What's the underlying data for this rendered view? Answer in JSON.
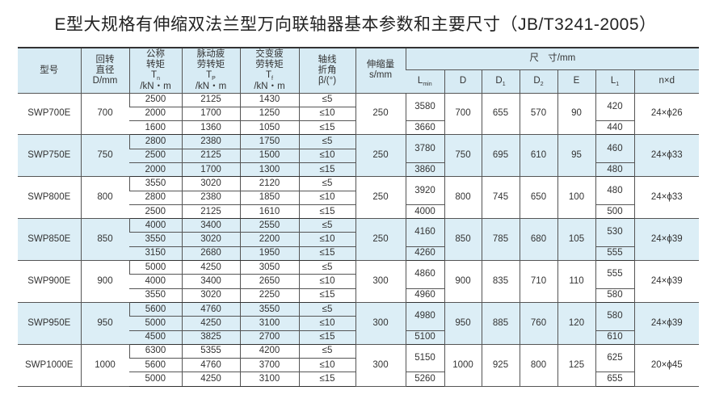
{
  "title": "E型大规格有伸缩双法兰型万向联轴器基本参数和主要尺寸（JB/T3241-2005）",
  "header": {
    "model": "型号",
    "rot_dia": [
      "回转",
      "直径",
      "D/mm"
    ],
    "tn": [
      "公称",
      "转矩",
      "T",
      "n",
      "/kN・m"
    ],
    "tp": [
      "脉动疲",
      "劳转矩",
      "T",
      "P",
      "/kN・m"
    ],
    "tf": [
      "交变疲",
      "劳转矩",
      "T",
      "f",
      "/kN・m"
    ],
    "beta": [
      "轴线",
      "折角",
      "β/(°)"
    ],
    "stroke": [
      "伸缩量",
      "s/mm"
    ],
    "dims": "尺　寸/mm",
    "lmin": [
      "L",
      "min"
    ],
    "d": "D",
    "d1": [
      "D",
      "1"
    ],
    "d2": [
      "D",
      "2"
    ],
    "e": "E",
    "l1": [
      "L",
      "1"
    ],
    "nd": "n×d"
  },
  "rows": [
    {
      "model": "SWP700E",
      "D": "700",
      "tn": [
        "2500",
        "2000",
        "1600"
      ],
      "tp": [
        "2125",
        "1700",
        "1360"
      ],
      "tf": [
        "1430",
        "1250",
        "1050"
      ],
      "beta": [
        "≤5",
        "≤10",
        "≤15"
      ],
      "s": "250",
      "lmin": [
        "3580",
        "3660"
      ],
      "Dd": "700",
      "D1": "655",
      "D2": "570",
      "E": "90",
      "L1": [
        "420",
        "440"
      ],
      "nd": "24×ϕ26"
    },
    {
      "model": "SWP750E",
      "D": "750",
      "tn": [
        "2800",
        "2500",
        "2000"
      ],
      "tp": [
        "2380",
        "2125",
        "1700"
      ],
      "tf": [
        "1750",
        "1500",
        "1300"
      ],
      "beta": [
        "≤5",
        "≤10",
        "≤15"
      ],
      "s": "250",
      "lmin": [
        "3780",
        "3860"
      ],
      "Dd": "750",
      "D1": "695",
      "D2": "610",
      "E": "95",
      "L1": [
        "460",
        "480"
      ],
      "nd": "24×ϕ33"
    },
    {
      "model": "SWP800E",
      "D": "800",
      "tn": [
        "3550",
        "2800",
        "2500"
      ],
      "tp": [
        "3020",
        "2380",
        "2125"
      ],
      "tf": [
        "2120",
        "1850",
        "1610"
      ],
      "beta": [
        "≤5",
        "≤10",
        "≤15"
      ],
      "s": "250",
      "lmin": [
        "3920",
        "4000"
      ],
      "Dd": "800",
      "D1": "745",
      "D2": "650",
      "E": "100",
      "L1": [
        "480",
        "500"
      ],
      "nd": "24×ϕ33"
    },
    {
      "model": "SWP850E",
      "D": "850",
      "tn": [
        "4000",
        "3550",
        "3150"
      ],
      "tp": [
        "3400",
        "3020",
        "2680"
      ],
      "tf": [
        "2550",
        "2200",
        "1950"
      ],
      "beta": [
        "≤5",
        "≤10",
        "≤15"
      ],
      "s": "250",
      "lmin": [
        "4160",
        "4260"
      ],
      "Dd": "850",
      "D1": "785",
      "D2": "680",
      "E": "105",
      "L1": [
        "530",
        "555"
      ],
      "nd": "24×ϕ39"
    },
    {
      "model": "SWP900E",
      "D": "900",
      "tn": [
        "5000",
        "4000",
        "3550"
      ],
      "tp": [
        "4250",
        "3400",
        "3020"
      ],
      "tf": [
        "3050",
        "2650",
        "2250"
      ],
      "beta": [
        "≤5",
        "≤10",
        "≤15"
      ],
      "s": "300",
      "lmin": [
        "4860",
        "4960"
      ],
      "Dd": "900",
      "D1": "835",
      "D2": "710",
      "E": "110",
      "L1": [
        "555",
        "580"
      ],
      "nd": "24×ϕ39"
    },
    {
      "model": "SWP950E",
      "D": "950",
      "tn": [
        "5600",
        "5000",
        "4500"
      ],
      "tp": [
        "4760",
        "4250",
        "3825"
      ],
      "tf": [
        "3550",
        "3100",
        "2700"
      ],
      "beta": [
        "≤5",
        "≤10",
        "≤15"
      ],
      "s": "300",
      "lmin": [
        "4980",
        "5100"
      ],
      "Dd": "950",
      "D1": "885",
      "D2": "760",
      "E": "120",
      "L1": [
        "580",
        "610"
      ],
      "nd": "24×ϕ39"
    },
    {
      "model": "SWP1000E",
      "D": "1000",
      "tn": [
        "6300",
        "5600",
        "5000"
      ],
      "tp": [
        "5355",
        "4760",
        "4250"
      ],
      "tf": [
        "4200",
        "3700",
        "3100"
      ],
      "beta": [
        "≤5",
        "≤10",
        "≤15"
      ],
      "s": "300",
      "lmin": [
        "5150",
        "5260"
      ],
      "Dd": "1000",
      "D1": "925",
      "D2": "800",
      "E": "125",
      "L1": [
        "625",
        "655"
      ],
      "nd": "20×ϕ45"
    }
  ],
  "colors": {
    "header_bg": "#d7ebf4",
    "alt_row_bg": "#dceef6"
  }
}
